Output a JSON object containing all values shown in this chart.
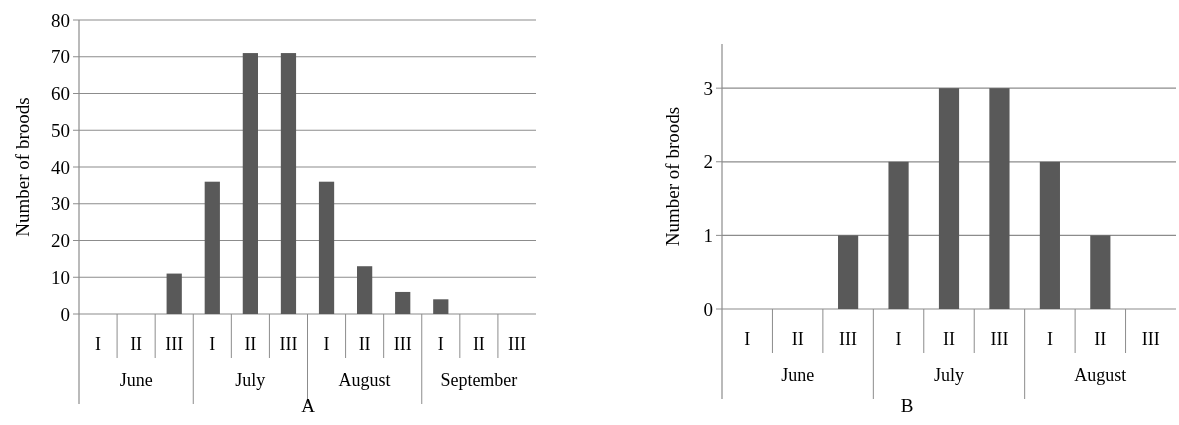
{
  "chart_data": [
    {
      "type": "bar",
      "title": "A",
      "ylabel": "Number of broods",
      "categories": [
        "I",
        "II",
        "III",
        "I",
        "II",
        "III",
        "I",
        "II",
        "III",
        "I",
        "II",
        "III"
      ],
      "values": [
        0,
        0,
        11,
        36,
        71,
        71,
        36,
        13,
        6,
        4,
        0,
        0
      ],
      "color": "#595959",
      "ylim": [
        0,
        80
      ],
      "yticks": [
        0,
        10,
        20,
        30,
        40,
        50,
        60,
        70,
        80
      ],
      "grid": "y",
      "annotations": [
        "June",
        "July",
        "August",
        "September"
      ]
    },
    {
      "type": "bar",
      "title": "B",
      "ylabel": "Number of broods",
      "categories": [
        "I",
        "II",
        "III",
        "I",
        "II",
        "III",
        "I",
        "II",
        "III"
      ],
      "values": [
        0,
        0,
        1,
        2,
        3,
        3,
        2,
        1,
        0
      ],
      "color": "#595959",
      "ylim": [
        0,
        3.6
      ],
      "yticks": [
        0,
        1,
        2,
        3
      ],
      "grid": "y",
      "annotations": [
        "June",
        "July",
        "August"
      ]
    }
  ]
}
